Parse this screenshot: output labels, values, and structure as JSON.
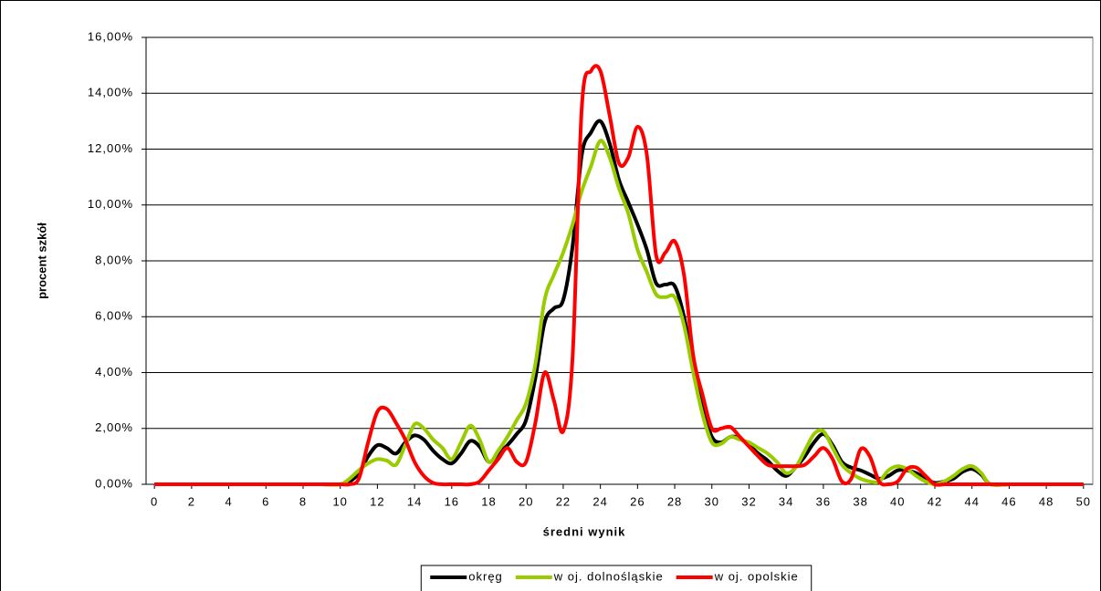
{
  "chart_data": {
    "type": "line",
    "xlabel": "średni wynik",
    "ylabel": "procent szkół",
    "x": [
      0,
      1,
      2,
      3,
      4,
      5,
      6,
      7,
      8,
      9,
      10,
      10.5,
      11,
      11.5,
      12,
      12.5,
      13,
      13.5,
      14,
      14.5,
      15,
      15.5,
      16,
      16.5,
      17,
      17.5,
      18,
      18.5,
      19,
      19.5,
      20,
      20.5,
      21,
      21.5,
      22,
      22.5,
      23,
      23.5,
      24,
      24.5,
      25,
      25.5,
      26,
      26.5,
      27,
      27.5,
      28,
      28.5,
      29,
      29.5,
      30,
      30.5,
      31,
      31.5,
      32,
      32.5,
      33,
      33.5,
      34,
      34.5,
      35,
      35.5,
      36,
      36.5,
      37,
      37.5,
      38,
      38.5,
      39,
      39.5,
      40,
      40.5,
      41,
      41.5,
      42,
      42.5,
      43,
      43.5,
      44,
      44.5,
      45,
      46,
      47,
      48,
      49,
      50
    ],
    "series": [
      {
        "name": "okręg",
        "color": "#000000",
        "values": [
          0,
          0,
          0,
          0,
          0,
          0,
          0,
          0,
          0,
          0,
          0,
          0.1,
          0.4,
          1.0,
          1.4,
          1.3,
          1.1,
          1.5,
          1.75,
          1.6,
          1.2,
          0.9,
          0.75,
          1.1,
          1.55,
          1.35,
          0.8,
          1.1,
          1.4,
          1.8,
          2.3,
          3.8,
          5.8,
          6.3,
          6.6,
          8.5,
          11.8,
          12.6,
          13.0,
          12.2,
          10.9,
          10.1,
          9.3,
          8.4,
          7.2,
          7.15,
          7.1,
          6.0,
          4.2,
          2.8,
          1.7,
          1.5,
          1.7,
          1.65,
          1.4,
          1.1,
          0.85,
          0.5,
          0.3,
          0.6,
          1.0,
          1.5,
          1.8,
          1.4,
          0.8,
          0.6,
          0.5,
          0.35,
          0.2,
          0.3,
          0.5,
          0.5,
          0.4,
          0.2,
          0.05,
          0.1,
          0.2,
          0.45,
          0.55,
          0.35,
          0,
          0,
          0,
          0,
          0,
          0
        ]
      },
      {
        "name": "w oj. dolnośląskie",
        "color": "#99cc00",
        "values": [
          0,
          0,
          0,
          0,
          0,
          0,
          0,
          0,
          0,
          0,
          0,
          0.2,
          0.5,
          0.75,
          0.9,
          0.85,
          0.7,
          1.4,
          2.15,
          2.0,
          1.6,
          1.3,
          0.9,
          1.5,
          2.1,
          1.6,
          0.8,
          1.2,
          1.7,
          2.3,
          2.9,
          4.3,
          6.6,
          7.5,
          8.3,
          9.3,
          10.5,
          11.4,
          12.3,
          11.7,
          10.6,
          9.7,
          8.4,
          7.6,
          6.8,
          6.7,
          6.7,
          5.7,
          4.0,
          2.5,
          1.5,
          1.45,
          1.7,
          1.6,
          1.5,
          1.3,
          1.1,
          0.8,
          0.4,
          0.6,
          1.2,
          1.8,
          1.9,
          1.3,
          0.7,
          0.4,
          0.2,
          0.1,
          0.1,
          0.5,
          0.65,
          0.55,
          0.3,
          0.1,
          0,
          0.1,
          0.3,
          0.55,
          0.65,
          0.4,
          0,
          0,
          0,
          0,
          0,
          0
        ]
      },
      {
        "name": "w oj. opolskie",
        "color": "#ff0000",
        "values": [
          0,
          0,
          0,
          0,
          0,
          0,
          0,
          0,
          0,
          0,
          0,
          0,
          0.2,
          1.5,
          2.6,
          2.7,
          2.2,
          1.6,
          0.8,
          0.3,
          0.05,
          0,
          0,
          0,
          0,
          0.1,
          0.5,
          0.9,
          1.3,
          0.8,
          0.8,
          2.2,
          4.0,
          3.0,
          1.9,
          4.5,
          13.5,
          14.8,
          14.8,
          13.2,
          11.5,
          11.7,
          12.8,
          11.8,
          8.2,
          8.3,
          8.7,
          7.5,
          4.6,
          3.2,
          2.0,
          2.0,
          2.05,
          1.7,
          1.35,
          1.0,
          0.7,
          0.65,
          0.65,
          0.65,
          0.7,
          1.0,
          1.3,
          0.9,
          0.1,
          0.2,
          1.25,
          1.0,
          0.1,
          0,
          0.1,
          0.55,
          0.6,
          0.3,
          0,
          0,
          0,
          0,
          0,
          0,
          0,
          0,
          0,
          0,
          0,
          0
        ]
      }
    ],
    "xlim": [
      -0.45,
      50.5
    ],
    "xticks": [
      0,
      2,
      4,
      6,
      8,
      10,
      12,
      14,
      16,
      18,
      20,
      22,
      24,
      26,
      28,
      30,
      32,
      34,
      36,
      38,
      40,
      42,
      44,
      46,
      48,
      50
    ],
    "ylim": [
      0,
      16
    ],
    "yticks": [
      {
        "value": 0,
        "label": "0,00%"
      },
      {
        "value": 2,
        "label": "2,00%"
      },
      {
        "value": 4,
        "label": "4,00%"
      },
      {
        "value": 6,
        "label": "6,00%"
      },
      {
        "value": 8,
        "label": "8,00%"
      },
      {
        "value": 10,
        "label": "10,00%"
      },
      {
        "value": 12,
        "label": "12,00%"
      },
      {
        "value": 14,
        "label": "14,00%"
      },
      {
        "value": 16,
        "label": "16,00%"
      }
    ],
    "grid": true,
    "legend": "bottom"
  }
}
